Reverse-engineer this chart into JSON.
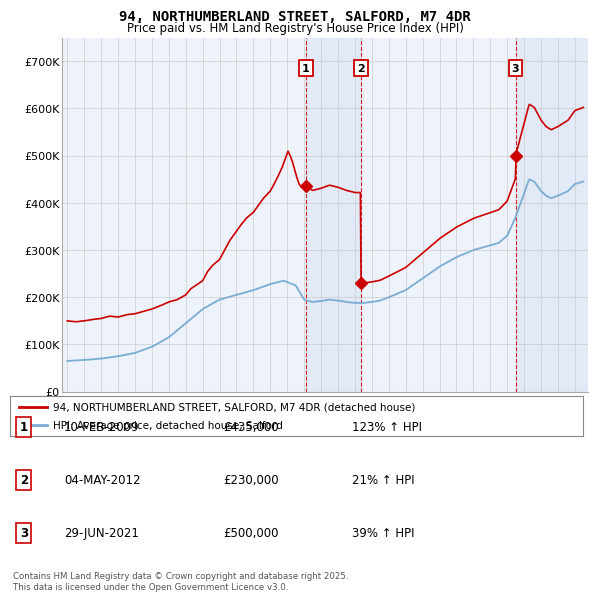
{
  "title": "94, NORTHUMBERLAND STREET, SALFORD, M7 4DR",
  "subtitle": "Price paid vs. HM Land Registry's House Price Index (HPI)",
  "ylim": [
    0,
    750000
  ],
  "yticks": [
    0,
    100000,
    200000,
    300000,
    400000,
    500000,
    600000,
    700000
  ],
  "ytick_labels": [
    "£0",
    "£100K",
    "£200K",
    "£300K",
    "£400K",
    "£500K",
    "£600K",
    "£700K"
  ],
  "sale_color": "#cc0000",
  "hpi_color": "#7aadd4",
  "purchase_labels": [
    "1",
    "2",
    "3"
  ],
  "legend_sale_label": "94, NORTHUMBERLAND STREET, SALFORD, M7 4DR (detached house)",
  "legend_hpi_label": "HPI: Average price, detached house, Salford",
  "table_data": [
    [
      "1",
      "10-FEB-2009",
      "£435,000",
      "123% ↑ HPI"
    ],
    [
      "2",
      "04-MAY-2012",
      "£230,000",
      "21% ↑ HPI"
    ],
    [
      "3",
      "29-JUN-2021",
      "£500,000",
      "39% ↑ HPI"
    ]
  ],
  "footnote": "Contains HM Land Registry data © Crown copyright and database right 2025.\nThis data is licensed under the Open Government Licence v3.0.",
  "bg_color": "#ffffff",
  "plot_bg_color": "#eef2fa",
  "grid_color": "#cccccc",
  "shade_color": "#dce8f5",
  "box_label_color": "#cc0000"
}
